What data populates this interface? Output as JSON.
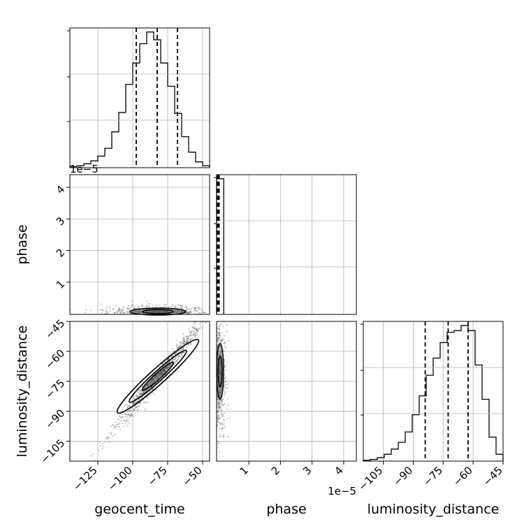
{
  "chart_data": {
    "type": "corner",
    "parameters": [
      "geocent_time",
      "phase",
      "luminosity_distance"
    ],
    "axis_labels": {
      "geocent_time": "geocent_time",
      "phase": "phase",
      "luminosity_distance": "luminosity_distance"
    },
    "ranges": {
      "geocent_time": [
        -145,
        -45
      ],
      "phase": [
        -2e-07,
        4.4e-05
      ],
      "luminosity_distance": [
        -115,
        -45
      ]
    },
    "ticks": {
      "geocent_time": [
        {
          "value": -125,
          "label": "−125"
        },
        {
          "value": -100,
          "label": "−100"
        },
        {
          "value": -75,
          "label": "−75"
        },
        {
          "value": -50,
          "label": "−50"
        }
      ],
      "phase": [
        {
          "value": 1e-05,
          "label": "1"
        },
        {
          "value": 2e-05,
          "label": "2"
        },
        {
          "value": 3e-05,
          "label": "3"
        },
        {
          "value": 4e-05,
          "label": "4"
        }
      ],
      "luminosity_distance": [
        {
          "value": -105,
          "label": "−105"
        },
        {
          "value": -90,
          "label": "−90"
        },
        {
          "value": -75,
          "label": "−75"
        },
        {
          "value": -60,
          "label": "−60"
        },
        {
          "value": -45,
          "label": "−45"
        }
      ]
    },
    "offset_text": {
      "phase": "1e−5"
    },
    "quantiles": {
      "geocent_time": [
        -97.5,
        -82.5,
        -68
      ],
      "phase": [
        0,
        3e-07,
        6e-07
      ],
      "luminosity_distance": [
        -84,
        -72.5,
        -62.5
      ]
    },
    "histograms": {
      "geocent_time": {
        "edges": [
          -145,
          -140,
          -135,
          -130,
          -125,
          -120,
          -115,
          -110,
          -105,
          -100,
          -95,
          -90,
          -85,
          -80,
          -75,
          -70,
          -65,
          -60,
          -55,
          -50,
          -45
        ],
        "counts": [
          1,
          2,
          4,
          7,
          12,
          20,
          37,
          57,
          86,
          108,
          128,
          140,
          132,
          108,
          84,
          56,
          32,
          16,
          6,
          2
        ]
      },
      "phase": {
        "edges": [
          -2e-07,
          2.06e-06
        ],
        "counts": [
          1
        ]
      },
      "luminosity_distance": {
        "edges": [
          -115,
          -111.5,
          -108,
          -104.5,
          -101,
          -97.5,
          -94,
          -90.5,
          -87,
          -83.5,
          -80,
          -76.5,
          -73,
          -69.5,
          -66,
          -62.5,
          -59,
          -55.5,
          -52,
          -48.5,
          -45
        ],
        "counts": [
          1,
          2,
          4,
          8,
          14,
          22,
          34,
          54,
          76,
          100,
          120,
          138,
          150,
          152,
          158,
          152,
          112,
          72,
          28,
          8
        ]
      }
    },
    "grid": true,
    "plot_color": "#000000",
    "point_color": "#555555",
    "grid_color": "#b0b0b0"
  }
}
